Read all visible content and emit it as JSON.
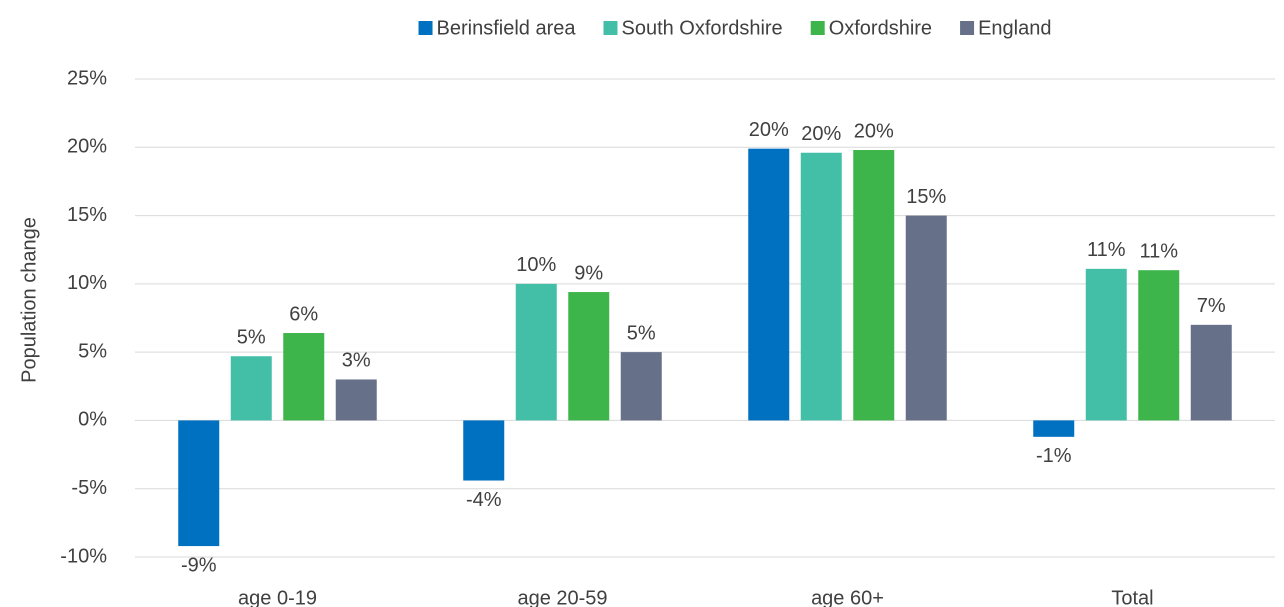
{
  "chart_data": {
    "type": "bar",
    "y_label": "Population change",
    "categories": [
      "age 0-19",
      "age 20-59",
      "age 60+",
      "Total"
    ],
    "series": [
      {
        "name": "Berinsfield area",
        "color": "#0070c0",
        "values": [
          -9.2,
          -4.4,
          19.9,
          -1.2
        ],
        "value_labels": [
          "-9%",
          "-4%",
          "20%",
          "-1%"
        ]
      },
      {
        "name": "South Oxfordshire",
        "color": "#43bfa8",
        "values": [
          4.7,
          10.0,
          19.6,
          11.1
        ],
        "value_labels": [
          "5%",
          "10%",
          "20%",
          "11%"
        ]
      },
      {
        "name": "Oxfordshire",
        "color": "#3db54a",
        "values": [
          6.4,
          9.4,
          19.8,
          11.0
        ],
        "value_labels": [
          "6%",
          "9%",
          "20%",
          "11%"
        ]
      },
      {
        "name": "England",
        "color": "#667089",
        "values": [
          3.0,
          5.0,
          15.0,
          7.0
        ],
        "value_labels": [
          "3%",
          "5%",
          "15%",
          "7%"
        ]
      }
    ],
    "ylim": [
      -10,
      25
    ],
    "yticks": [
      {
        "value": -10,
        "label": "-10%"
      },
      {
        "value": -5,
        "label": "-5%"
      },
      {
        "value": 0,
        "label": "0%"
      },
      {
        "value": 5,
        "label": "5%"
      },
      {
        "value": 10,
        "label": "10%"
      },
      {
        "value": 15,
        "label": "15%"
      },
      {
        "value": 20,
        "label": "20%"
      },
      {
        "value": 25,
        "label": "25%"
      }
    ],
    "grid": true,
    "legend": "top"
  }
}
